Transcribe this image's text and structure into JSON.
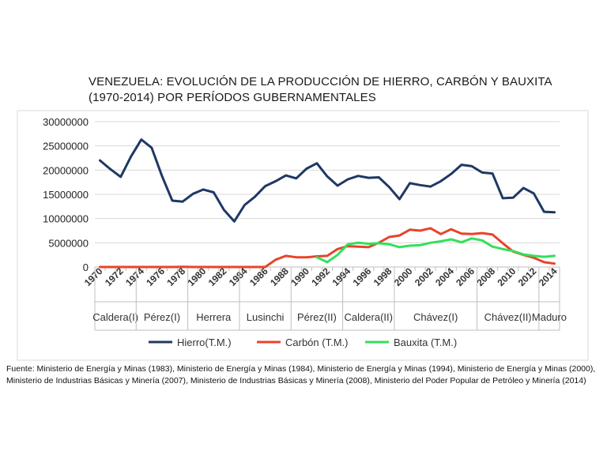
{
  "title_line1": "VENEZUELA: EVOLUCIÓN DE LA PRODUCCIÓN DE HIERRO, CARBÓN Y BAUXITA",
  "title_line2": "(1970-2014) POR PERÍODOS GUBERNAMENTALES",
  "source_note": "Fuente: Ministerio de Energía y Minas (1983), Ministerio de Energía y Minas (1984), Ministerio de Energía y Minas (1994), Ministerio de Energía y Minas (2000), Ministerio de Industrias Básicas y Minería (2007), Ministerio de Industrias Básicas y Minería (2008), Ministerio del Poder Popular de Petróleo y Minería (2014)",
  "chart_data": {
    "type": "line",
    "title": "VENEZUELA: EVOLUCIÓN DE LA PRODUCCIÓN DE HIERRO, CARBÓN Y BAUXITA (1970-2014) POR PERÍODOS GUBERNAMENTALES",
    "xlabel": "",
    "ylabel": "",
    "ylim": [
      0,
      30000000
    ],
    "y_ticks": [
      "30000000",
      "25000000",
      "20000000",
      "15000000",
      "10000000",
      "5000000",
      "0"
    ],
    "x": [
      1970,
      1971,
      1972,
      1973,
      1974,
      1975,
      1976,
      1977,
      1978,
      1979,
      1980,
      1981,
      1982,
      1983,
      1984,
      1985,
      1986,
      1987,
      1988,
      1989,
      1990,
      1991,
      1992,
      1993,
      1994,
      1995,
      1996,
      1997,
      1998,
      1999,
      2000,
      2001,
      2002,
      2003,
      2004,
      2005,
      2006,
      2007,
      2008,
      2009,
      2010,
      2011,
      2012,
      2013,
      2014
    ],
    "x_tick_labels": [
      "1970",
      "1972",
      "1974",
      "1976",
      "1978",
      "1980",
      "1982",
      "1984",
      "1986",
      "1988",
      "1990",
      "1992",
      "1994",
      "1996",
      "1998",
      "2000",
      "2002",
      "2004",
      "2006",
      "2008",
      "2010",
      "2012",
      "2014"
    ],
    "periods": [
      {
        "label": "Caldera(I)",
        "start": 1970,
        "end": 1974
      },
      {
        "label": "Pérez(I)",
        "start": 1974,
        "end": 1979
      },
      {
        "label": "Herrera",
        "start": 1979,
        "end": 1984
      },
      {
        "label": "Lusinchi",
        "start": 1984,
        "end": 1989
      },
      {
        "label": "Pérez(II)",
        "start": 1989,
        "end": 1994
      },
      {
        "label": "Caldera(II)",
        "start": 1994,
        "end": 1999
      },
      {
        "label": "Chávez(I)",
        "start": 1999,
        "end": 2007
      },
      {
        "label": "Chávez(II)",
        "start": 2007,
        "end": 2013
      },
      {
        "label": "Maduro",
        "start": 2013,
        "end": 2014
      }
    ],
    "series": [
      {
        "name": "Hierro(T.M.)",
        "color": "#1f3864",
        "values": [
          22000000,
          20200000,
          18600000,
          22800000,
          26300000,
          24600000,
          18800000,
          13700000,
          13500000,
          15100000,
          16000000,
          15400000,
          11800000,
          9400000,
          12800000,
          14500000,
          16700000,
          17700000,
          18900000,
          18300000,
          20300000,
          21400000,
          18700000,
          16800000,
          18100000,
          18800000,
          18400000,
          18500000,
          16500000,
          14000000,
          17300000,
          16900000,
          16600000,
          17700000,
          19200000,
          21100000,
          20800000,
          19500000,
          19300000,
          14200000,
          14300000,
          16300000,
          15200000,
          11400000,
          11300000
        ]
      },
      {
        "name": "Carbón  (T.M.)",
        "color": "#e8442a",
        "values": [
          0,
          0,
          0,
          0,
          0,
          0,
          0,
          0,
          50000,
          0,
          0,
          0,
          0,
          0,
          0,
          0,
          0,
          1500000,
          2300000,
          2000000,
          2000000,
          2200000,
          2300000,
          3700000,
          4300000,
          4200000,
          4100000,
          5000000,
          6200000,
          6500000,
          7700000,
          7500000,
          8000000,
          6800000,
          7800000,
          6900000,
          6800000,
          7000000,
          6700000,
          4900000,
          3200000,
          2500000,
          1900000,
          1000000,
          700000
        ]
      },
      {
        "name": "Bauxita (T.M.)",
        "color": "#33e05a",
        "start_index": 21,
        "values": [
          null,
          null,
          null,
          null,
          null,
          null,
          null,
          null,
          null,
          null,
          null,
          null,
          null,
          null,
          null,
          null,
          null,
          null,
          null,
          null,
          null,
          2000000,
          1000000,
          2500000,
          4700000,
          5000000,
          4800000,
          4900000,
          4700000,
          4100000,
          4400000,
          4500000,
          5000000,
          5300000,
          5700000,
          5100000,
          5900000,
          5500000,
          4200000,
          3700000,
          3300000,
          2600000,
          2300000,
          2100000,
          2300000
        ]
      }
    ],
    "legend": "bottom",
    "grid": true
  }
}
